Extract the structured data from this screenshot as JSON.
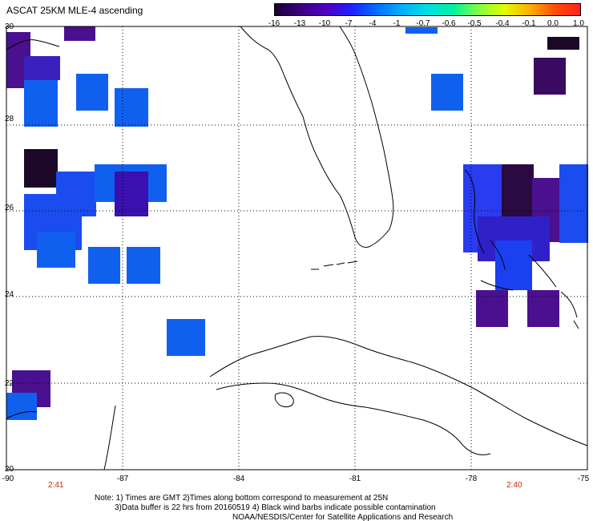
{
  "title": "ASCAT 25KM MLE-4 ascending",
  "colorbar": {
    "labels": [
      "-16",
      "-13",
      "-10",
      "-7",
      "-4",
      "-1",
      "-0.7",
      "-0.6",
      "-0.5",
      "-0.4",
      "-0.1",
      "0.0",
      "1.0"
    ],
    "colors": [
      "#1a0030",
      "#3a0080",
      "#5000c0",
      "#2020ff",
      "#0070ff",
      "#00b0ff",
      "#00e0e0",
      "#00f0a0",
      "#80ff40",
      "#e0ff00",
      "#ffb000",
      "#ff5000",
      "#ff2020"
    ]
  },
  "axes": {
    "lat_labels": [
      "30",
      "28",
      "26",
      "24",
      "22",
      "20"
    ],
    "lon_labels": [
      "-90",
      "-87",
      "-84",
      "-81",
      "-78",
      "-75"
    ]
  },
  "pass_times": {
    "left": "2:41",
    "right": "2:40"
  },
  "notes": {
    "line1": "Note: 1) Times are GMT 2)Times along bottom correspond to measurement at 25N",
    "line2": "3)Data buffer is 22 hrs from 20160519 4) Black wind barbs indicate possible contamination",
    "line3": "NOAA/NESDIS/Center for Satellite Applications and Research"
  },
  "palette": {
    "blue": "#1060f0",
    "mid_blue": "#2a3cf0",
    "indigo": "#3c10b0",
    "purple": "#4a1080",
    "dark": "#1c0828"
  }
}
